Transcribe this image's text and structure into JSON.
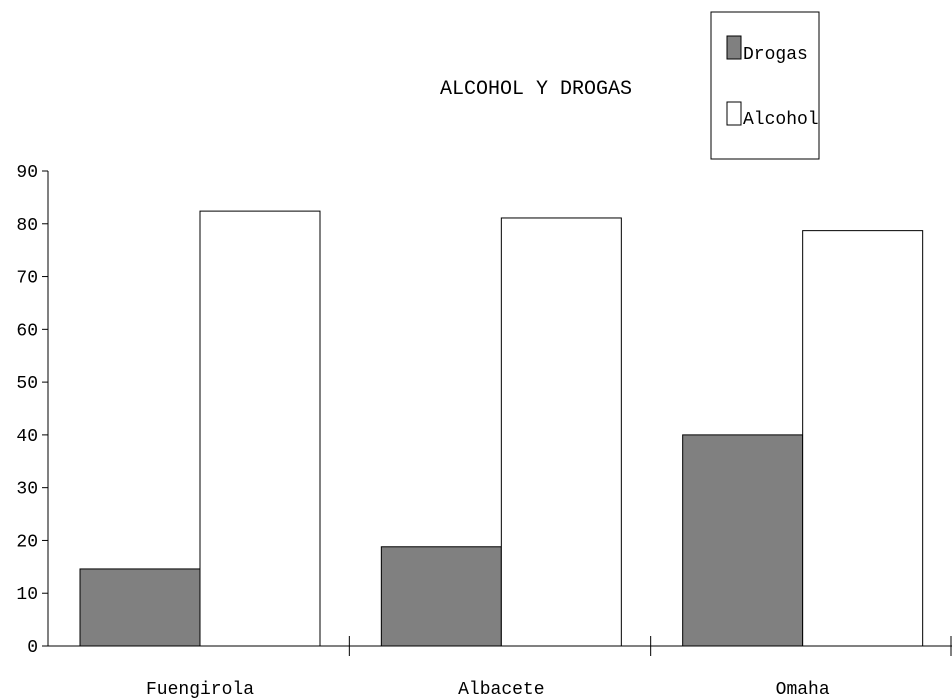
{
  "chart_data": {
    "type": "bar",
    "title": "ALCOHOL Y DROGAS",
    "xlabel": "",
    "ylabel": "",
    "categories": [
      "Fuengirola",
      "Albacete",
      "Omaha"
    ],
    "series": [
      {
        "name": "Drogas",
        "values": [
          14.6,
          18.8,
          40.0
        ],
        "color": "#808080"
      },
      {
        "name": "Alcohol",
        "values": [
          82.4,
          81.1,
          78.7
        ],
        "color": "#ffffff"
      }
    ],
    "ylim": [
      0,
      90
    ],
    "yticks": [
      "0",
      "10",
      "20",
      "30",
      "40",
      "50",
      "60",
      "70",
      "80",
      "90"
    ],
    "grid": false,
    "legend": {
      "placement": "top-right"
    }
  }
}
